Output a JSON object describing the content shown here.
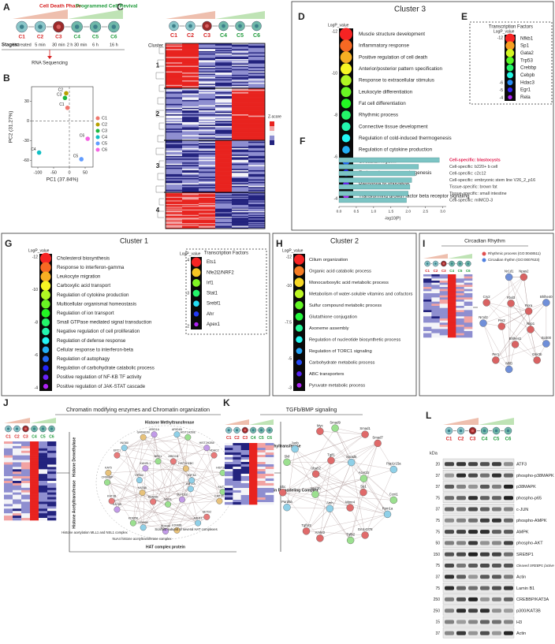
{
  "panels": {
    "A": {
      "letter": "A",
      "phases": [
        "Cell Death Phase",
        "Programmed Cell Revival"
      ],
      "samples": [
        "C1",
        "C2",
        "C3",
        "C4",
        "C5",
        "C6"
      ],
      "stages_label": "Stages:",
      "stages": [
        "Untreated",
        "5 min",
        "30 min",
        "2 h 30 min",
        "6 h",
        "16 h"
      ],
      "output": "RNA Sequencing"
    },
    "B": {
      "letter": "B",
      "chart": {
        "type": "scatter",
        "x_label": "PC1 (37.84%)",
        "y_label": "PC2 (31.27%)",
        "names": [
          "C1",
          "C2",
          "C3",
          "C4",
          "C5",
          "C6"
        ],
        "colors": [
          "#f0776d",
          "#b8a000",
          "#1fb840",
          "#10bfc4",
          "#619cff",
          "#f564e3"
        ],
        "x": [
          -6,
          -10,
          -14,
          -96,
          38,
          58
        ],
        "y": [
          20,
          42,
          35,
          -48,
          -58,
          -27
        ],
        "xlim": [
          -120,
          75
        ],
        "ylim": [
          -70,
          52
        ],
        "xticks": [
          -100,
          -50,
          0,
          50
        ],
        "yticks": [
          30,
          0,
          -30,
          -60
        ],
        "legend": "right"
      }
    },
    "C": {
      "letter": "C",
      "samples": [
        "C1",
        "C2",
        "C3",
        "C4",
        "C5",
        "C6"
      ],
      "cluster_label": "Cluster",
      "clusters": [
        "1",
        "2",
        "3",
        "4"
      ],
      "scale_label": "Z-score"
    },
    "D": {
      "letter": "D",
      "title": "Cluster 3",
      "scale_label": "LogP_value",
      "scale_ticks": [
        -12,
        -10,
        -8,
        -6,
        -4
      ],
      "terms": [
        "Muscle structure development",
        "Inflammatory response",
        "Positive regulation of cell death",
        "Anterior/posterior pattern specification",
        "Response to extracellular stimulus",
        "Leukocyte differentiation",
        "Fat cell differentiation",
        "Rhythmic process",
        "Connective tissue development",
        "Regulation of cold-induced thermogenesis",
        "Regulation of cytokine production",
        "Circadian rhythm",
        "Embryonic organ morphogenesis",
        "Response to starvation",
        "Transforming growth factor beta receptor signaling"
      ]
    },
    "E": {
      "letter": "E",
      "title": "Transcription Factors",
      "scale_label": "LogP_value",
      "scale_ticks": [
        -12,
        -6,
        -5,
        -4
      ],
      "terms": [
        "Nfkb1",
        "Sp1",
        "Gata2",
        "Trp53",
        "Crebbp",
        "Cebpb",
        "Hdac3",
        "Egr1",
        "Rela"
      ]
    },
    "F": {
      "letter": "F",
      "chart": {
        "type": "bar",
        "orientation": "horizontal",
        "categories": [
          "Cell-specific: blastocysts",
          "Cell-specific: b220+ b cell",
          "Cell-specific: c2c12",
          "Cell-specific: embryonic stem line V26_2_p16",
          "Tissue-specific: brown fat",
          "Tissue-specific: small intestine",
          "Cell-specific: mIMCD-3"
        ],
        "values": [
          2.9,
          2.3,
          2.2,
          2.1,
          2.05,
          2.0,
          1.95
        ],
        "color": "#7cc4c4",
        "label_colors": [
          "#e0174a",
          "#333333",
          "#333333",
          "#333333",
          "#333333",
          "#333333",
          "#333333"
        ],
        "x_label": "-log10(P)",
        "xlim": [
          0,
          3.1
        ],
        "xticks": [
          {
            "value": 0,
            "label": "0.0"
          },
          {
            "value": 0.5,
            "label": "0.5"
          },
          {
            "value": 1,
            "label": "1.0"
          },
          {
            "value": 1.5,
            "label": "1.5"
          },
          {
            "value": 2,
            "label": "2.0"
          },
          {
            "value": 2.5,
            "label": "2.5"
          },
          {
            "value": 3,
            "label": "3.0"
          }
        ]
      }
    },
    "G": {
      "letter": "G",
      "title": "Cluster 1",
      "scale_label": "LogP_value",
      "scale_ticks": [
        -12,
        -10,
        -8,
        -6,
        -4
      ],
      "terms": [
        "Cholesterol biosynthesis",
        "Response to interferon-gamma",
        "Leukocyte migration",
        "Carboxylic acid transport",
        "Regulation of cytokine production",
        "Multicellular organismal homeostasis",
        "Regulation of ion transport",
        "Small GTPase mediated signal transduction",
        "Negative regulation of cell proliferation",
        "Regulation of defense response",
        "Cellular response to interferon-beta",
        "Regulation of autophagy",
        "Regulation of carbohydrate catabolic process",
        "Positive regulation of NF-KB TF activity",
        "Positive regulation of JAK-STAT cascade"
      ],
      "tf": {
        "title": "Transcription Factors",
        "scale_label": "LogP_value",
        "scale_ticks": [
          -4,
          -3,
          -2
        ],
        "terms": [
          "Ets1",
          "Nfe2l2/NRF2",
          "Irf1",
          "Stat1",
          "Srebf1",
          "Ahr",
          "Apex1"
        ]
      }
    },
    "H": {
      "letter": "H",
      "title": "Cluster 2",
      "scale_label": "LogP_value",
      "scale_ticks": [
        -12,
        -10,
        -7.5,
        -5,
        -3
      ],
      "terms": [
        "Cilium organization",
        "Organic acid catabolic process",
        "Monocarboxylic acid metabolic process",
        "Metabolism of water-soluble vitamins and cofactors",
        "Sulfur compound metabolic process",
        "Glutathione conjugation",
        "Axoneme assembly",
        "Regulation of nucleotide biosynthetic process",
        "Regulation of TORC1 signaling",
        "Carbohydrate metabolic process",
        "ABC transporters",
        "Pyruvate metabolic process"
      ]
    },
    "I": {
      "letter": "I",
      "title": "Circadian Rhythm",
      "samples": [
        "C1",
        "C2",
        "C3",
        "C4",
        "C5",
        "C6"
      ],
      "legend": [
        "Rhythmic process (GO:0048511)",
        "Circadian rhythm (GO:0007623)"
      ],
      "nodes": [
        "Nrip1",
        "Ep300",
        "Gsk3b",
        "Bhlhe41",
        "Nfil3",
        "Per1",
        "Per2",
        "Nr1d2",
        "Cry2",
        "Fbxl3",
        "Nr1d1",
        "Npas2",
        "Rora",
        "Bhlhe40"
      ]
    },
    "J": {
      "letter": "J",
      "title": "Chromatin modifying enzymes and Chromatin organization",
      "samples": [
        "C1",
        "C2",
        "C3",
        "C4",
        "C5",
        "C6"
      ],
      "groups": [
        "Histone Methyltransferase",
        "Histone Lysine Methyltransferase",
        "SWI/SNF Chromatin Remodeling Complex",
        "HAT complex protein",
        "Histone Acetyltransferase",
        "Histone Demethylase"
      ],
      "nodes": [
        "KMT2A",
        "KMT2C",
        "KMT2D",
        "SETD1B",
        "SETD2",
        "ASH1L",
        "NSD1",
        "KDM6B",
        "KDM4A",
        "KDM3A",
        "KDM6A",
        "KDM5B",
        "KAT6B",
        "KAT6A",
        "KAT2B",
        "EP300",
        "CREBBP",
        "KAT5",
        "KANSL1",
        "EPC1",
        "INO80",
        "BRD1",
        "GATAD2B",
        "ARID1A",
        "ARID1B",
        "ARID4B",
        "HIST1H2BE",
        "HIST1H2BC",
        "HIST2H2BE",
        "HDAC2",
        "H3F3A",
        "HIST1H3E"
      ],
      "notes": [
        "Histone acetylation MLL1 and NSL1 complex",
        "NuA4 histone acetyltransferase complex",
        "Scaffold subunit of several HAT complexes"
      ]
    },
    "K": {
      "letter": "K",
      "title": "TGFb/BMP signaling",
      "samples": [
        "C1",
        "C2",
        "C3",
        "C4",
        "C5",
        "C6"
      ],
      "nodes": [
        "Sp1",
        "Ccnt1",
        "Ppm1a",
        "Mtmr4",
        "Gm14378",
        "Tgfb2",
        "Amh",
        "Amhr2",
        "Tgfbr3",
        "Acvr2b",
        "Pard6a",
        "Ubc",
        "Uba52",
        "Skil",
        "Junb",
        "Tgif1",
        "Myc",
        "Smad9",
        "Smad5",
        "Smad1",
        "Smad7",
        "Acvr1b",
        "Ppp1r15a"
      ]
    },
    "L": {
      "letter": "L",
      "samples": [
        "C1",
        "C2",
        "C3",
        "C4",
        "C5",
        "C6"
      ],
      "unit": "kDa",
      "rows": [
        {
          "name": "ATF3",
          "kda": 20
        },
        {
          "name": "phospho-p38MAPK",
          "kda": 37
        },
        {
          "name": "p38MAPK",
          "kda": 37
        },
        {
          "name": "phospho-p65",
          "kda": 75
        },
        {
          "name": "c-JUN",
          "kda": 37
        },
        {
          "name": "phospho-AMPK",
          "kda": 75
        },
        {
          "name": "AMPK",
          "kda": 75
        },
        {
          "name": "phospho-AKT",
          "kda": 50
        },
        {
          "name": "SREBP1",
          "kda": 150
        },
        {
          "name": "Cleaved SREBP1 (active form)",
          "kda": 75
        },
        {
          "name": "Actin",
          "kda": 37
        },
        {
          "name": "Lamin B1",
          "kda": 75
        },
        {
          "name": "CREBBP/KAT3A",
          "kda": 250
        },
        {
          "name": "p300/KAT3B",
          "kda": 250
        },
        {
          "name": "H3",
          "kda": 15
        },
        {
          "name": "Actin",
          "kda": 37
        }
      ]
    }
  }
}
